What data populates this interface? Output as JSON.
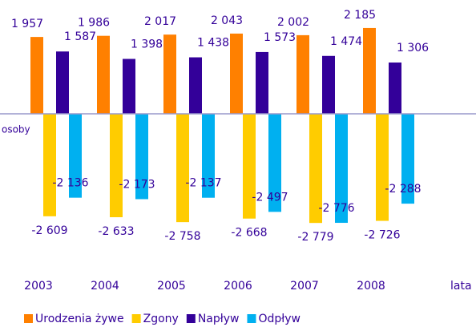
{
  "chart_data": {
    "type": "bar",
    "categories": [
      "2003",
      "2004",
      "2005",
      "2006",
      "2007",
      "2008"
    ],
    "series": [
      {
        "name": "Urodzenia żywe",
        "color": "#ff8000",
        "values": [
          1957,
          1986,
          2017,
          2043,
          2002,
          2185
        ],
        "value_labels": [
          "1 957",
          "1 986",
          "2 017",
          "2 043",
          "2 002",
          "2 185"
        ]
      },
      {
        "name": "Zgony",
        "color": "#ffcc00",
        "values": [
          -2609,
          -2633,
          -2758,
          -2668,
          -2779,
          -2726
        ],
        "value_labels": [
          "-2 609",
          "-2 633",
          "-2 758",
          "-2 668",
          "-2 779",
          "-2 726"
        ]
      },
      {
        "name": "Napływ",
        "color": "#330099",
        "values": [
          1587,
          1398,
          1438,
          1573,
          1474,
          1306
        ],
        "value_labels": [
          "1 587",
          "1 398",
          "1 438",
          "1 573",
          "1 474",
          "1 306"
        ]
      },
      {
        "name": "Odpływ",
        "color": "#00b0f0",
        "values": [
          -2136,
          -2173,
          -2137,
          -2497,
          -2776,
          -2288
        ],
        "value_labels": [
          "-2 136",
          "-2 173",
          "-2 137",
          "-2 497",
          "-2 776",
          "-2 288"
        ]
      }
    ],
    "y_label": "osoby",
    "x_label": "lata",
    "ylim": [
      -3000,
      2400
    ]
  }
}
